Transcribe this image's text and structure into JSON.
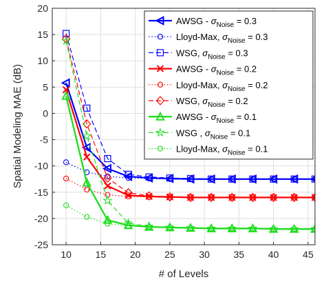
{
  "chart_data": {
    "type": "line",
    "title": "",
    "xlabel": "# of Levels",
    "ylabel": "Spatial Modeling MAE (dB)",
    "xlim": [
      8,
      46
    ],
    "ylim": [
      -25,
      20
    ],
    "xticks": [
      10,
      15,
      20,
      25,
      30,
      35,
      40,
      45
    ],
    "yticks": [
      -25,
      -20,
      -15,
      -10,
      -5,
      0,
      5,
      10,
      15,
      20
    ],
    "grid": true,
    "legend_position": "top-right",
    "series": [
      {
        "name": "AWSG - σNoise = 0.3",
        "label_main": "AWSG - ",
        "sigma_value": " = 0.3",
        "color": "#0000ff",
        "style": "solid",
        "width": 2.2,
        "marker": "triangle-left",
        "x": [
          10,
          13,
          16,
          19,
          22,
          25,
          28,
          31,
          34,
          37,
          40,
          43,
          46
        ],
        "y": [
          5.8,
          -6.5,
          -10.5,
          -12.0,
          -12.3,
          -12.4,
          -12.5,
          -12.5,
          -12.5,
          -12.5,
          -12.5,
          -12.5,
          -12.5
        ]
      },
      {
        "name": "Lloyd-Max, σNoise = 0.3",
        "label_main": "Lloyd-Max, ",
        "sigma_value": " = 0.3",
        "color": "#0000ff",
        "style": "dotted",
        "width": 1.2,
        "marker": "circle",
        "x": [
          10,
          13,
          16,
          19,
          22,
          25,
          28,
          31,
          34,
          37,
          40,
          43,
          46
        ],
        "y": [
          -9.3,
          -11.2,
          -12.0,
          -12.3,
          -12.4,
          -12.5,
          -12.5,
          -12.5,
          -12.5,
          -12.5,
          -12.5,
          -12.5,
          -12.5
        ]
      },
      {
        "name": "WSG, σNoise = 0.3",
        "label_main": "WSG, ",
        "sigma_value": " = 0.3",
        "color": "#0000ff",
        "style": "dashed",
        "width": 1.2,
        "marker": "square",
        "x": [
          10,
          13,
          16,
          19,
          22,
          25,
          28,
          31,
          34,
          37,
          40,
          43,
          46
        ],
        "y": [
          15.2,
          1.0,
          -8.6,
          -11.6,
          -12.1,
          -12.3,
          -12.4,
          -12.5,
          -12.5,
          -12.5,
          -12.5,
          -12.5,
          -12.5
        ]
      },
      {
        "name": "AWSG - σNoise = 0.2",
        "label_main": "AWSG - ",
        "sigma_value": " = 0.2",
        "color": "#ff0000",
        "style": "solid",
        "width": 2.2,
        "marker": "x",
        "x": [
          10,
          13,
          16,
          19,
          22,
          25,
          28,
          31,
          34,
          37,
          40,
          43,
          46
        ],
        "y": [
          4.5,
          -8.3,
          -13.8,
          -15.6,
          -15.8,
          -15.9,
          -16.0,
          -16.0,
          -16.0,
          -16.0,
          -16.0,
          -16.0,
          -16.0
        ]
      },
      {
        "name": "Lloyd-Max, σNoise = 0.2",
        "label_main": "Lloyd-Max, ",
        "sigma_value": " = 0.2",
        "color": "#ff0000",
        "style": "dotted",
        "width": 1.2,
        "marker": "circle",
        "x": [
          10,
          13,
          16,
          19,
          22,
          25,
          28,
          31,
          34,
          37,
          40,
          43,
          46
        ],
        "y": [
          -12.4,
          -14.5,
          -15.5,
          -15.8,
          -15.9,
          -16.0,
          -16.0,
          -16.0,
          -16.0,
          -16.0,
          -16.0,
          -16.0,
          -16.0
        ]
      },
      {
        "name": "WSG, σNoise = 0.2",
        "label_main": "WSG, ",
        "sigma_value": " = 0.2",
        "color": "#ff0000",
        "style": "dashed",
        "width": 1.2,
        "marker": "diamond",
        "x": [
          10,
          13,
          16,
          19,
          22,
          25,
          28,
          31,
          34,
          37,
          40,
          43,
          46
        ],
        "y": [
          14.2,
          -2.0,
          -12.3,
          -15.1,
          -15.7,
          -15.9,
          -16.0,
          -16.0,
          -16.0,
          -16.0,
          -16.0,
          -16.0,
          -16.0
        ]
      },
      {
        "name": "AWSG - σNoise = 0.1",
        "label_main": "AWSG - ",
        "sigma_value": " = 0.1",
        "color": "#22dd22",
        "style": "solid",
        "width": 2.4,
        "marker": "triangle-up",
        "x": [
          10,
          13,
          16,
          19,
          22,
          25,
          28,
          31,
          34,
          37,
          40,
          43,
          46
        ],
        "y": [
          3.3,
          -13.2,
          -20.3,
          -21.3,
          -21.6,
          -21.7,
          -21.8,
          -21.9,
          -21.9,
          -21.9,
          -22.0,
          -22.0,
          -22.0
        ]
      },
      {
        "name": "WSG , σNoise = 0.1",
        "label_main": "WSG , ",
        "sigma_value": " = 0.1",
        "color": "#22dd22",
        "style": "dashed",
        "width": 1.2,
        "marker": "star",
        "x": [
          10,
          13,
          16,
          19,
          22,
          25,
          28,
          31,
          34,
          37,
          40,
          43,
          46
        ],
        "y": [
          13.8,
          -4.3,
          -16.6,
          -20.9,
          -21.5,
          -21.7,
          -21.8,
          -21.9,
          -21.9,
          -21.9,
          -22.0,
          -22.0,
          -22.0
        ]
      },
      {
        "name": "Lloyd-Max, σNoise = 0.1",
        "label_main": "Lloyd-Max, ",
        "sigma_value": " = 0.1",
        "color": "#22dd22",
        "style": "dotted",
        "width": 1.2,
        "marker": "circle",
        "x": [
          10,
          13,
          16,
          19,
          22,
          25,
          28,
          31,
          34,
          37,
          40,
          43,
          46
        ],
        "y": [
          -17.5,
          -19.7,
          -21.0,
          -21.4,
          -21.6,
          -21.7,
          -21.8,
          -21.9,
          -21.9,
          -21.9,
          -22.0,
          -22.0,
          -22.0
        ]
      }
    ],
    "legend_sigma_symbol": "σ",
    "legend_sigma_subscript": "Noise"
  }
}
